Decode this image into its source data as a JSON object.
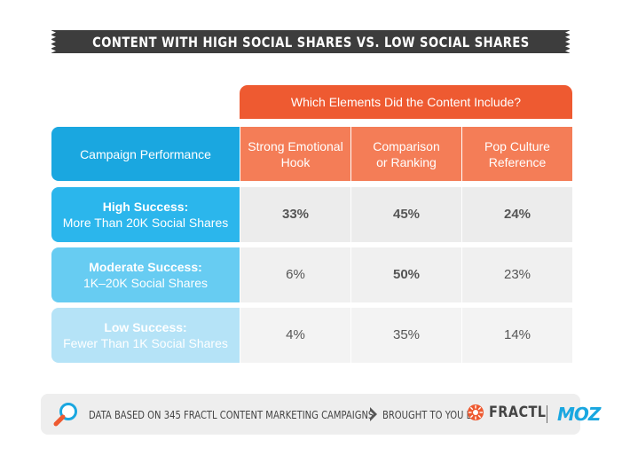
{
  "title": "CONTENT WITH HIGH SOCIAL SHARES VS. LOW SOCIAL SHARES",
  "colors": {
    "banner": "#3d3d3d",
    "orange_header": "#ee5a31",
    "orange_cells": "#f47d57",
    "blue_header": "#1aa7e0",
    "blue_high": "#2bb6ec",
    "blue_moderate": "#67ccf2",
    "blue_low": "#b5e3f7"
  },
  "chart_data": {
    "type": "table",
    "title": "CONTENT WITH HIGH SOCIAL SHARES VS. LOW SOCIAL SHARES",
    "group_header": "Which Elements Did the Content Include?",
    "row_header": "Campaign Performance",
    "columns": [
      {
        "line1": "Strong Emotional",
        "line2": "Hook"
      },
      {
        "line1": "Comparison",
        "line2": "or Ranking"
      },
      {
        "line1": "Pop Culture",
        "line2": "Reference"
      }
    ],
    "rows": [
      {
        "label": "High Success:",
        "sublabel": "More Than 20K Social Shares",
        "values": [
          "33%",
          "45%",
          "24%"
        ],
        "bold": [
          true,
          true,
          true
        ]
      },
      {
        "label": "Moderate Success:",
        "sublabel": "1K–20K Social Shares",
        "values": [
          "6%",
          "50%",
          "23%"
        ],
        "bold": [
          false,
          true,
          false
        ]
      },
      {
        "label": "Low Success:",
        "sublabel": "Fewer Than 1K Social Shares",
        "values": [
          "4%",
          "35%",
          "14%"
        ],
        "bold": [
          false,
          false,
          false
        ]
      }
    ]
  },
  "footer": {
    "data_note": "DATA BASED ON 345 FRACTL CONTENT MARKETING CAMPAIGNS",
    "brought_by": "BROUGHT TO YOU BY",
    "brand1": "FRACTL",
    "brand2": "MOZ",
    "icons": [
      "magnifier-icon",
      "chevron-right-icon",
      "fractl-logo-icon"
    ]
  }
}
